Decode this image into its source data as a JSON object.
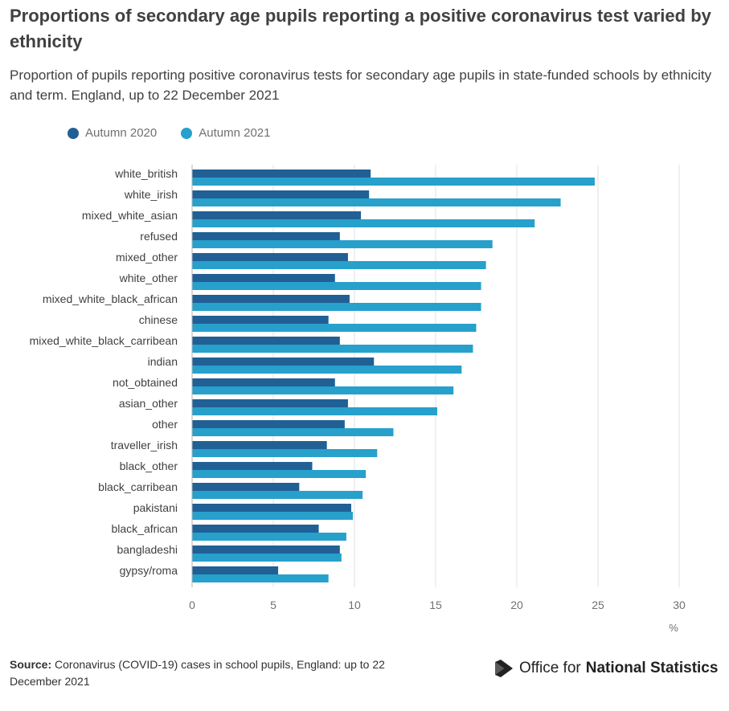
{
  "header": {
    "title": "Proportions of secondary age pupils reporting a positive coronavirus test varied by ethnicity",
    "subtitle": "Proportion of pupils reporting positive coronavirus tests for secondary age pupils in state-funded schools by ethnicity and term. England, up to 22 December 2021"
  },
  "legend": [
    {
      "label": "Autumn 2020",
      "color": "#206095"
    },
    {
      "label": "Autumn 2021",
      "color": "#27a0cc"
    }
  ],
  "chart_data": {
    "type": "bar",
    "orientation": "horizontal",
    "categories": [
      "white_british",
      "white_irish",
      "mixed_white_asian",
      "refused",
      "mixed_other",
      "white_other",
      "mixed_white_black_african",
      "chinese",
      "mixed_white_black_carribean",
      "indian",
      "not_obtained",
      "asian_other",
      "other",
      "traveller_irish",
      "black_other",
      "black_carribean",
      "pakistani",
      "black_african",
      "bangladeshi",
      "gypsy/roma"
    ],
    "series": [
      {
        "name": "Autumn 2020",
        "color": "#206095",
        "values": [
          11.0,
          10.9,
          10.4,
          9.1,
          9.6,
          8.8,
          9.7,
          8.4,
          9.1,
          11.2,
          8.8,
          9.6,
          9.4,
          8.3,
          7.4,
          6.6,
          9.8,
          7.8,
          9.1,
          5.3
        ]
      },
      {
        "name": "Autumn 2021",
        "color": "#27a0cc",
        "values": [
          24.8,
          22.7,
          21.1,
          18.5,
          18.1,
          17.8,
          17.8,
          17.5,
          17.3,
          16.6,
          16.1,
          15.1,
          12.4,
          11.4,
          10.7,
          10.5,
          9.9,
          9.5,
          9.2,
          8.4
        ]
      }
    ],
    "x_ticks": [
      "0",
      "5",
      "10",
      "15",
      "20",
      "25",
      "30"
    ],
    "xlabel": "%",
    "xlim": [
      0,
      30
    ],
    "grid": true
  },
  "footer": {
    "source_label": "Source:",
    "source_text": "Coronavirus (COVID-19) cases in school pupils, England: up to 22 December 2021",
    "logo_text_regular": "Office for",
    "logo_text_bold": "National Statistics"
  }
}
